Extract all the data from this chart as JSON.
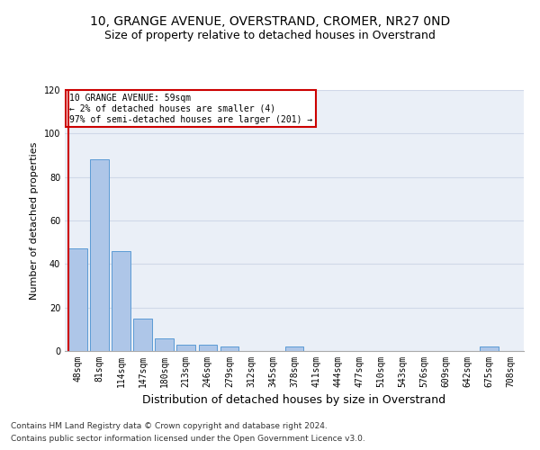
{
  "title1": "10, GRANGE AVENUE, OVERSTRAND, CROMER, NR27 0ND",
  "title2": "Size of property relative to detached houses in Overstrand",
  "xlabel": "Distribution of detached houses by size in Overstrand",
  "ylabel": "Number of detached properties",
  "categories": [
    "48sqm",
    "81sqm",
    "114sqm",
    "147sqm",
    "180sqm",
    "213sqm",
    "246sqm",
    "279sqm",
    "312sqm",
    "345sqm",
    "378sqm",
    "411sqm",
    "444sqm",
    "477sqm",
    "510sqm",
    "543sqm",
    "576sqm",
    "609sqm",
    "642sqm",
    "675sqm",
    "708sqm"
  ],
  "values": [
    47,
    88,
    46,
    15,
    6,
    3,
    3,
    2,
    0,
    0,
    2,
    0,
    0,
    0,
    0,
    0,
    0,
    0,
    0,
    2,
    0
  ],
  "bar_color": "#aec6e8",
  "bar_edge_color": "#5b9bd5",
  "annotation_box_text": "10 GRANGE AVENUE: 59sqm\n← 2% of detached houses are smaller (4)\n97% of semi-detached houses are larger (201) →",
  "annotation_box_color": "#ffffff",
  "annotation_box_edge_color": "#cc0000",
  "vline_color": "#cc0000",
  "ylim": [
    0,
    120
  ],
  "yticks": [
    0,
    20,
    40,
    60,
    80,
    100,
    120
  ],
  "grid_color": "#d0d8e8",
  "background_color": "#eaeff7",
  "footer1": "Contains HM Land Registry data © Crown copyright and database right 2024.",
  "footer2": "Contains public sector information licensed under the Open Government Licence v3.0.",
  "title1_fontsize": 10,
  "title2_fontsize": 9,
  "ylabel_fontsize": 8,
  "xlabel_fontsize": 9,
  "tick_fontsize": 7,
  "annotation_fontsize": 7,
  "footer_fontsize": 6.5
}
